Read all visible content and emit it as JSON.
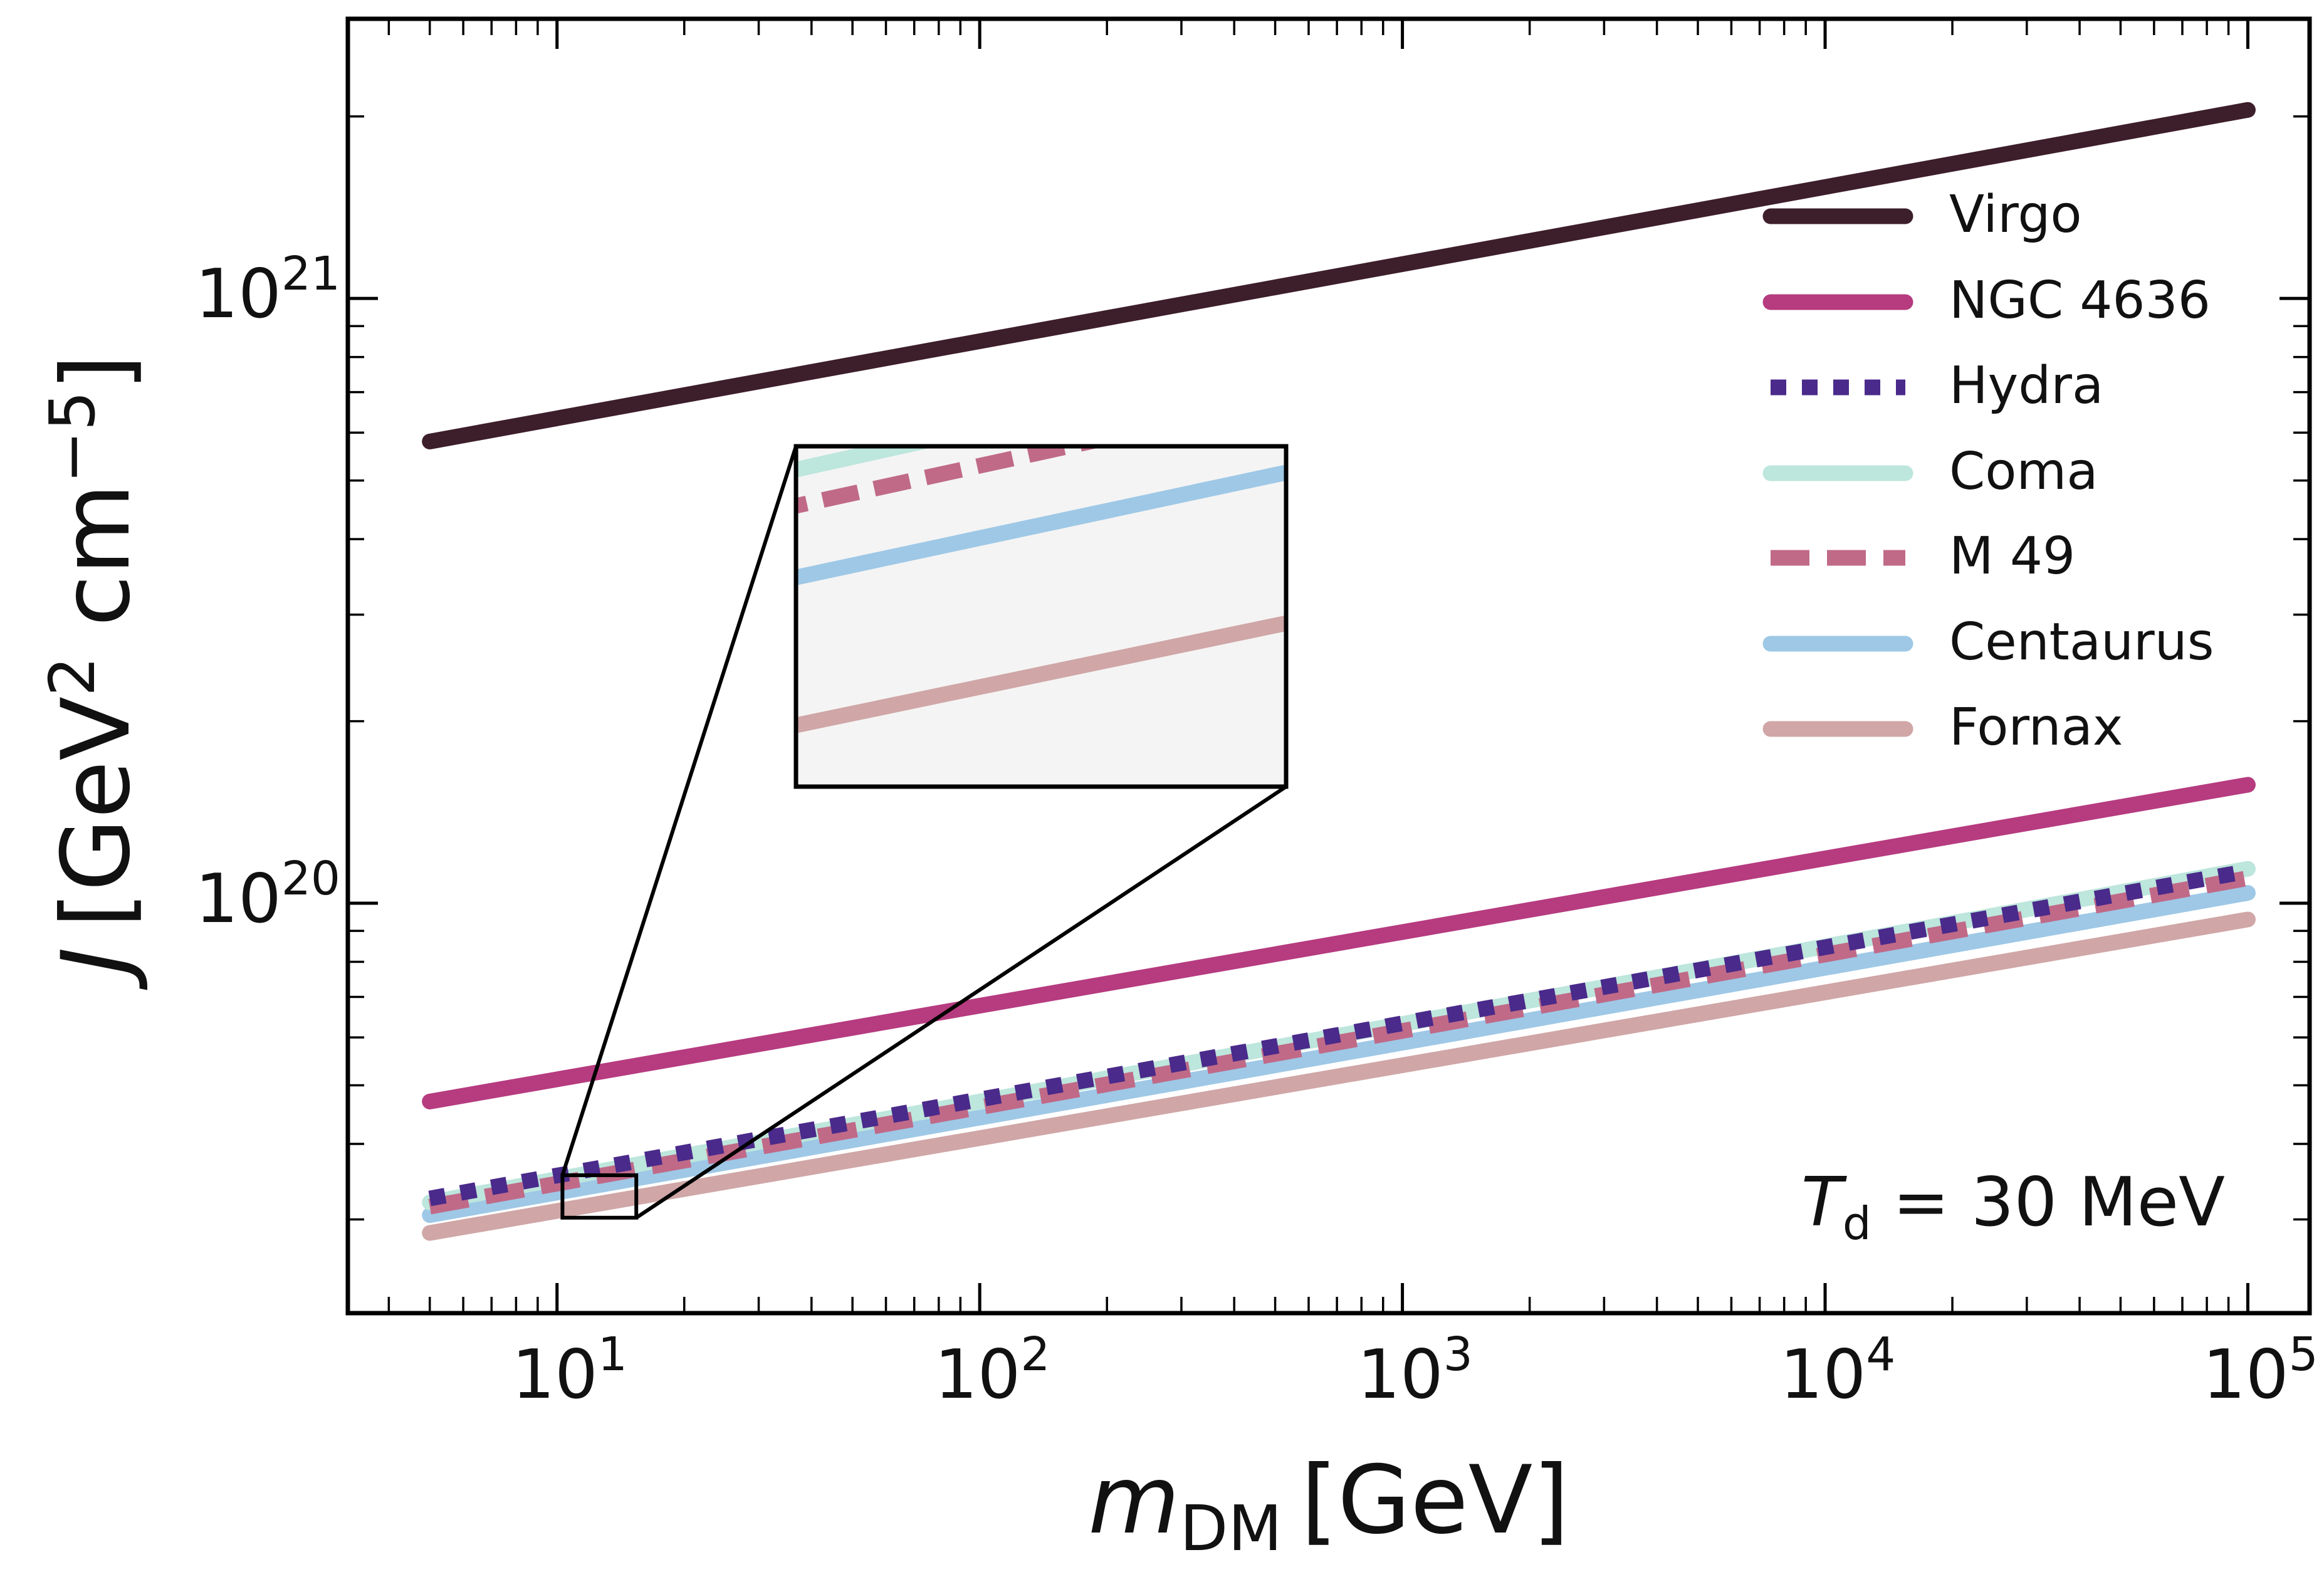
{
  "chart_data": {
    "type": "line",
    "title": "",
    "xlabel": {
      "main": "m",
      "sub": "DM",
      "unit": "[GeV]"
    },
    "ylabel": {
      "main": "J",
      "unit_text": "[GeV",
      "unit_exp": "2",
      "unit_mid": " cm",
      "unit_exp2": "−5",
      "unit_close": "]"
    },
    "xscale": "log",
    "yscale": "log",
    "xlim": [
      3.2,
      140000
    ],
    "ylim": [
      2.1e+19,
      2.9e+21
    ],
    "xticks": [
      {
        "base": "10",
        "exp": "1",
        "value": 10
      },
      {
        "base": "10",
        "exp": "2",
        "value": 100
      },
      {
        "base": "10",
        "exp": "3",
        "value": 1000
      },
      {
        "base": "10",
        "exp": "4",
        "value": 10000
      },
      {
        "base": "10",
        "exp": "5",
        "value": 100000
      }
    ],
    "yticks": [
      {
        "base": "10",
        "exp": "20",
        "value": 1e+20
      },
      {
        "base": "10",
        "exp": "21",
        "value": 1e+21
      }
    ],
    "x": [
      5,
      100000
    ],
    "series": [
      {
        "name": "Virgo",
        "values": [
          5.8e+20,
          2.05e+21
        ],
        "color": "#3d1e2b",
        "style": "solid"
      },
      {
        "name": "NGC 4636",
        "values": [
          4.7e+19,
          1.57e+20
        ],
        "color": "#b63b7f",
        "style": "solid"
      },
      {
        "name": "Hydra",
        "values": [
          3.25e+19,
          1.13e+20
        ],
        "color": "#4a2a8a",
        "style": "dotted"
      },
      {
        "name": "Coma",
        "values": [
          3.2e+19,
          1.14e+20
        ],
        "color": "#bde6dc",
        "style": "solid"
      },
      {
        "name": "M 49",
        "values": [
          3.15e+19,
          1.1e+20
        ],
        "color": "#c06a88",
        "style": "dashed"
      },
      {
        "name": "Centaurus",
        "values": [
          3.05e+19,
          1.04e+20
        ],
        "color": "#9ec8e6",
        "style": "solid"
      },
      {
        "name": "Fornax",
        "values": [
          2.85e+19,
          9.4e+19
        ],
        "color": "#d0a6a6",
        "style": "solid"
      }
    ],
    "legend_position": "upper-right",
    "annotation": {
      "main": "T",
      "sub": "d",
      "rest": " = 30 MeV"
    },
    "inset": {
      "xrange": [
        10.3,
        15.4
      ],
      "yrange": [
        3.02e+19,
        3.55e+19
      ]
    }
  }
}
